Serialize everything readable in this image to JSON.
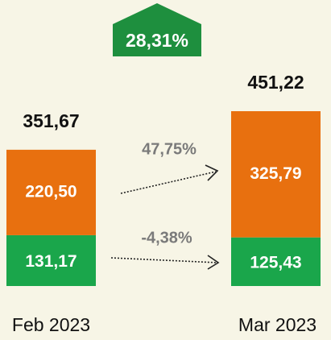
{
  "chart_data": {
    "type": "stacked_bar",
    "categories": [
      "Feb 2023",
      "Mar 2023"
    ],
    "series": [
      {
        "color": "#1aa64b",
        "values": [
          131.17,
          125.43
        ],
        "value_labels": [
          "131,17",
          "125,43"
        ]
      },
      {
        "color": "#e8700f",
        "values": [
          220.5,
          325.79
        ],
        "value_labels": [
          "220,50",
          "325,79"
        ]
      }
    ],
    "totals": [
      351.67,
      451.22
    ],
    "total_labels": [
      "351,67",
      "451,22"
    ],
    "annotations": [
      "28,31%",
      "47,75%",
      "-4,38%"
    ]
  }
}
